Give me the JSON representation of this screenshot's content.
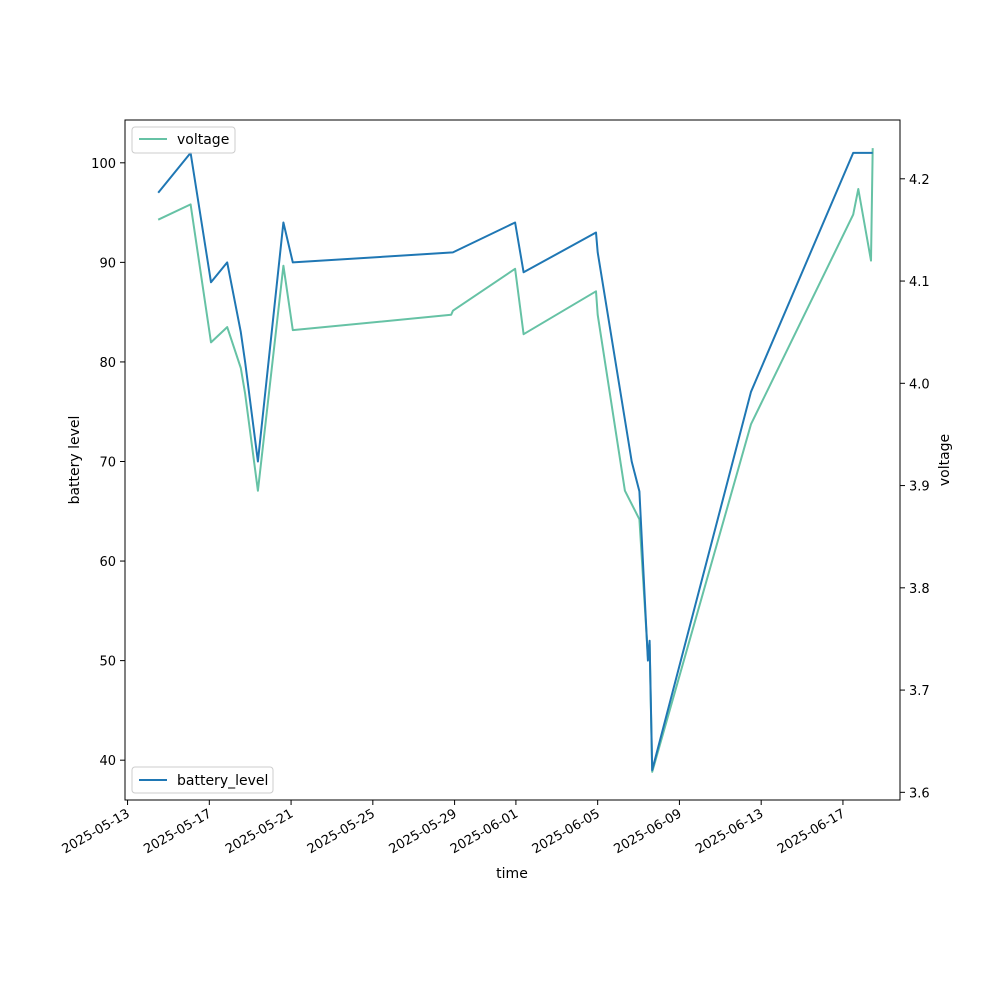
{
  "chart_data": {
    "type": "line",
    "xlabel": "time",
    "ylabel": "battery level",
    "y2label": "voltage",
    "xlim": [
      "2025-05-12T21:00",
      "2025-06-19T19:00"
    ],
    "ylim": [
      36.0,
      104.3
    ],
    "y2lim": [
      3.5925,
      4.2575
    ],
    "x_ticks": [
      "2025-05-13",
      "2025-05-17",
      "2025-05-21",
      "2025-05-25",
      "2025-05-29",
      "2025-06-01",
      "2025-06-05",
      "2025-06-09",
      "2025-06-13",
      "2025-06-17"
    ],
    "y_ticks": [
      40,
      50,
      60,
      70,
      80,
      90,
      100
    ],
    "y2_ticks": [
      3.6,
      3.7,
      3.8,
      3.9,
      4.0,
      4.1,
      4.2
    ],
    "grid": false,
    "series": [
      {
        "name": "battery_level",
        "axis": "left",
        "color": "#1f77b4",
        "legend_position": "lower-left",
        "points": [
          [
            "2025-05-14T12:00",
            97
          ],
          [
            "2025-05-16T02:00",
            101
          ],
          [
            "2025-05-17T02:00",
            88
          ],
          [
            "2025-05-17T21:00",
            90
          ],
          [
            "2025-05-18T13:00",
            83
          ],
          [
            "2025-05-18T18:00",
            80
          ],
          [
            "2025-05-19T09:00",
            70
          ],
          [
            "2025-05-20T15:00",
            94
          ],
          [
            "2025-05-21T02:00",
            90
          ],
          [
            "2025-05-28T22:00",
            91
          ],
          [
            "2025-05-31T23:00",
            94
          ],
          [
            "2025-06-01T09:00",
            89
          ],
          [
            "2025-06-04T22:00",
            93
          ],
          [
            "2025-06-05T00:00",
            91
          ],
          [
            "2025-06-06T16:00",
            70
          ],
          [
            "2025-06-07T01:00",
            67
          ],
          [
            "2025-06-07T11:00",
            50
          ],
          [
            "2025-06-07T13:00",
            52
          ],
          [
            "2025-06-07T16:00",
            39
          ],
          [
            "2025-06-12T12:00",
            77
          ],
          [
            "2025-06-17T12:00",
            101
          ],
          [
            "2025-06-18T09:00",
            101
          ],
          [
            "2025-06-18T11:00",
            101
          ]
        ]
      },
      {
        "name": "voltage",
        "axis": "right",
        "color": "#66c2a5",
        "legend_position": "upper-left",
        "points": [
          [
            "2025-05-14T12:00",
            4.16
          ],
          [
            "2025-05-16T02:00",
            4.175
          ],
          [
            "2025-05-17T02:00",
            4.04
          ],
          [
            "2025-05-17T21:00",
            4.055
          ],
          [
            "2025-05-18T13:00",
            4.015
          ],
          [
            "2025-05-18T18:00",
            3.99
          ],
          [
            "2025-05-19T09:00",
            3.895
          ],
          [
            "2025-05-20T15:00",
            4.115
          ],
          [
            "2025-05-21T02:00",
            4.052
          ],
          [
            "2025-05-28T20:00",
            4.067
          ],
          [
            "2025-05-28T22:00",
            4.071
          ],
          [
            "2025-05-31T23:00",
            4.112
          ],
          [
            "2025-06-01T09:00",
            4.048
          ],
          [
            "2025-06-04T22:00",
            4.09
          ],
          [
            "2025-06-05T00:00",
            4.067
          ],
          [
            "2025-06-06T08:00",
            3.895
          ],
          [
            "2025-06-07T01:00",
            3.867
          ],
          [
            "2025-06-07T11:00",
            3.733
          ],
          [
            "2025-06-07T13:00",
            3.745
          ],
          [
            "2025-06-07T16:00",
            3.62
          ],
          [
            "2025-06-12T12:00",
            3.96
          ],
          [
            "2025-06-17T12:00",
            4.165
          ],
          [
            "2025-06-17T18:00",
            4.19
          ],
          [
            "2025-06-18T09:00",
            4.12
          ],
          [
            "2025-06-18T11:00",
            4.23
          ]
        ]
      }
    ]
  }
}
